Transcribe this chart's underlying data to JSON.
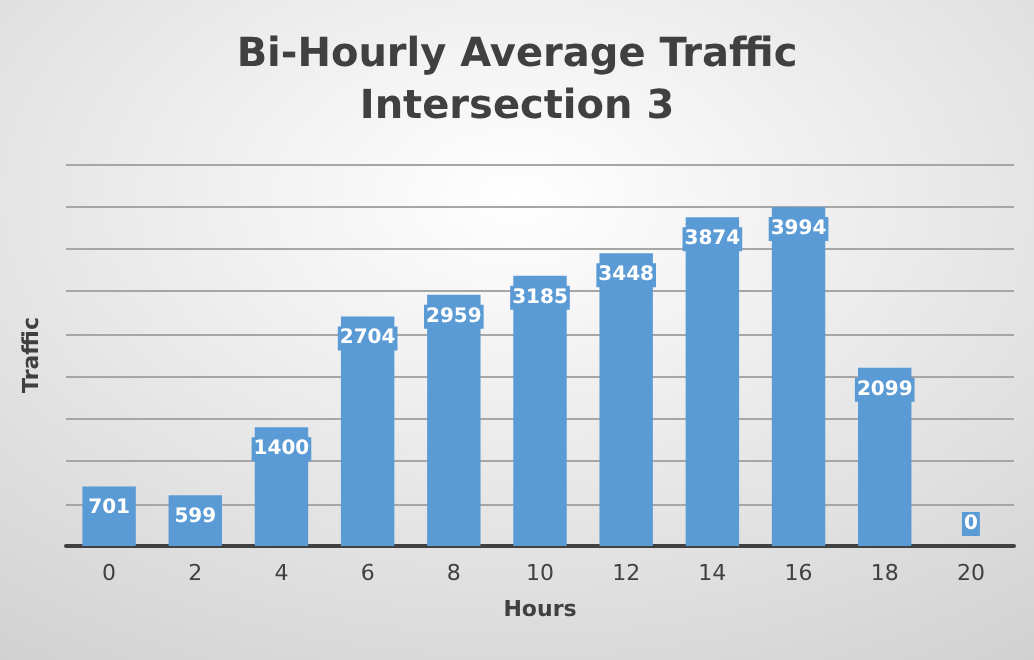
{
  "chart_data": {
    "type": "bar",
    "title": "Bi-Hourly Average Traffic\nIntersection 3",
    "xlabel": "Hours",
    "ylabel": "Traffic",
    "categories": [
      "0",
      "2",
      "4",
      "6",
      "8",
      "10",
      "12",
      "14",
      "16",
      "18",
      "20"
    ],
    "values": [
      701,
      599,
      1400,
      2704,
      2959,
      3185,
      3448,
      3874,
      3994,
      2099,
      0
    ],
    "color": "#5b9bd5",
    "data_labels": true,
    "grid": "y",
    "tick_labels": "x",
    "ylim": [
      0,
      4500
    ],
    "yticks": [
      {
        "value": 0,
        "label": null
      },
      {
        "value": 500,
        "label": null
      },
      {
        "value": 1000,
        "label": null
      },
      {
        "value": 1500,
        "label": null
      },
      {
        "value": 2000,
        "label": null
      },
      {
        "value": 2500,
        "label": null
      },
      {
        "value": 3000,
        "label": null
      },
      {
        "value": 3500,
        "label": null
      },
      {
        "value": 4000,
        "label": null
      },
      {
        "value": 4500,
        "label": null
      }
    ]
  }
}
